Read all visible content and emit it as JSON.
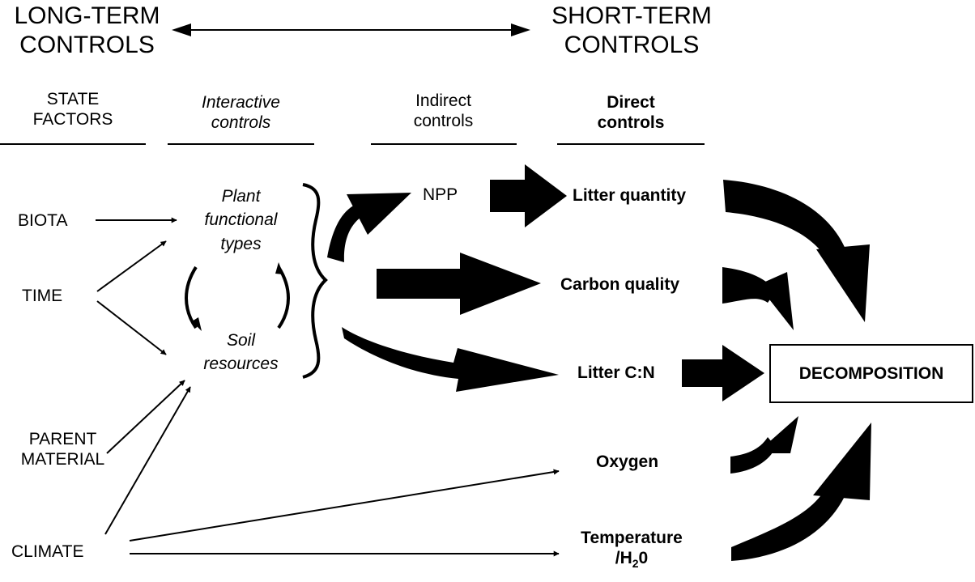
{
  "top": {
    "long_term": [
      "LONG-TERM",
      "CONTROLS"
    ],
    "short_term": [
      "SHORT-TERM",
      "CONTROLS"
    ]
  },
  "columns": {
    "state_factors": [
      "STATE",
      "FACTORS"
    ],
    "interactive": [
      "Interactive",
      "controls"
    ],
    "indirect": [
      "Indirect",
      "controls"
    ],
    "direct": [
      "Direct",
      "controls"
    ]
  },
  "state_factors": {
    "biota": "BIOTA",
    "time": "TIME",
    "parent": [
      "PARENT",
      "MATERIAL"
    ],
    "climate": "CLIMATE"
  },
  "interactive": {
    "plant": [
      "Plant",
      "functional",
      "types"
    ],
    "soil": [
      "Soil",
      "resources"
    ]
  },
  "indirect": {
    "npp": "NPP"
  },
  "direct": {
    "litter_quantity": "Litter quantity",
    "carbon_quality": "Carbon quality",
    "litter_cn": "Litter C:N",
    "oxygen": "Oxygen",
    "temperature": {
      "line1": "Temperature",
      "line2_prefix": "/H",
      "sub": "2",
      "line2_suffix": "0"
    }
  },
  "outcome": {
    "decomposition": "DECOMPOSITION"
  }
}
